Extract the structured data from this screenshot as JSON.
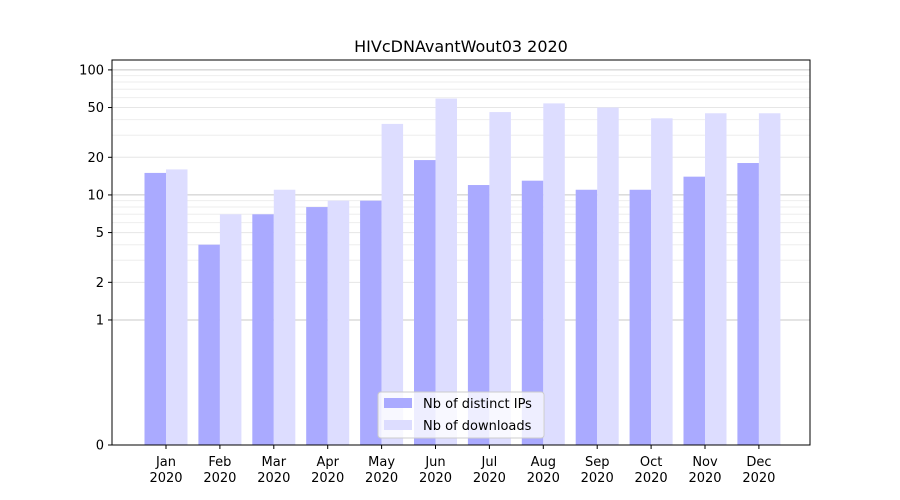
{
  "chart_data": {
    "type": "bar",
    "title": "HIVcDNAvantWout03 2020",
    "xlabel": "",
    "ylabel": "",
    "categories": [
      "Jan\n2020",
      "Feb\n2020",
      "Mar\n2020",
      "Apr\n2020",
      "May\n2020",
      "Jun\n2020",
      "Jul\n2020",
      "Aug\n2020",
      "Sep\n2020",
      "Oct\n2020",
      "Nov\n2020",
      "Dec\n2020"
    ],
    "series": [
      {
        "name": "Nb of distinct IPs",
        "color": "#aaaaff",
        "values": [
          15,
          4,
          7,
          8,
          9,
          19,
          12,
          13,
          11,
          11,
          14,
          18
        ]
      },
      {
        "name": "Nb of downloads",
        "color": "#ddddff",
        "values": [
          16,
          7,
          11,
          9,
          37,
          59,
          46,
          54,
          50,
          41,
          45,
          45
        ]
      }
    ],
    "y_scale": "symlog",
    "yticks": [
      0,
      1,
      2,
      5,
      10,
      20,
      50,
      100
    ],
    "ylim": [
      0,
      120
    ],
    "grid": true,
    "legend_position": "bottom-center"
  }
}
